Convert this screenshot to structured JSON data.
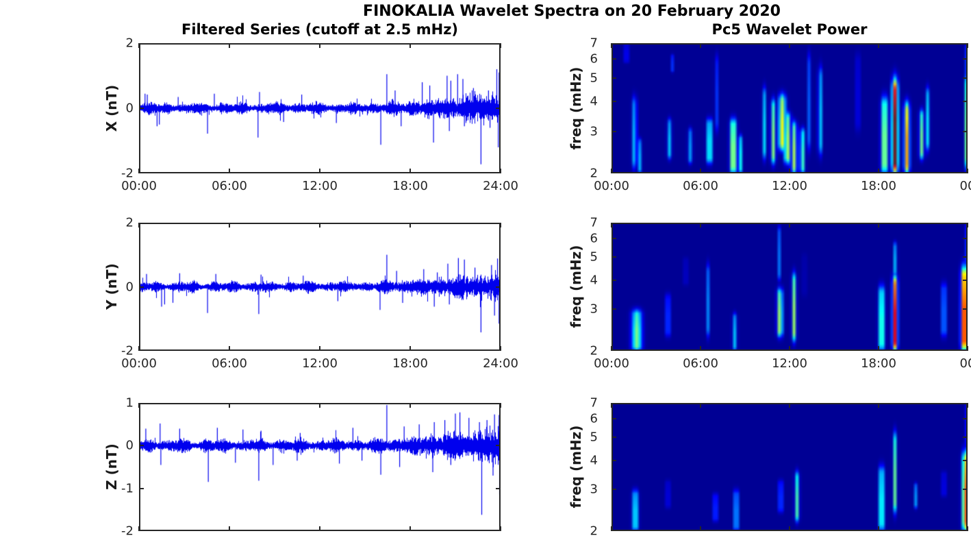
{
  "figure": {
    "title": "FINOKALIA Wavelet Spectra on 20 February 2020",
    "left_title": "Filtered Series (cutoff at 2.5 mHz)",
    "right_title": "Pc5 Wavelet Power"
  },
  "colors": {
    "series_line": "#0000ee",
    "axis": "#262626",
    "tick_text": "#262626",
    "title_text": "#000000",
    "spectrogram_background": "#00008f",
    "colormap": "jet"
  },
  "chart_data": [
    {
      "type": "line",
      "id": "x-filtered-series",
      "component": "X",
      "ylabel": "X (nT)",
      "ylim": [
        -2,
        2
      ],
      "yticks": [
        2,
        0,
        -2
      ],
      "x_range_hours": [
        0,
        24
      ],
      "xtick_labels": [
        "00:00",
        "06:00",
        "12:00",
        "18:00",
        "24:00"
      ],
      "line_color": "#0000ee",
      "noise": {
        "seed": 7,
        "base_amp": 0.1,
        "late_start": 14.5,
        "late_amp": 0.3
      },
      "spikes": [
        [
          0.4,
          0.45
        ],
        [
          0.55,
          0.42
        ],
        [
          1.2,
          -0.55
        ],
        [
          1.35,
          -0.5
        ],
        [
          2.6,
          0.35
        ],
        [
          4.55,
          -0.78
        ],
        [
          5.0,
          0.45
        ],
        [
          7.9,
          -0.9
        ],
        [
          8.0,
          0.5
        ],
        [
          9.6,
          -0.42
        ],
        [
          10.8,
          0.42
        ],
        [
          13.1,
          -0.45
        ],
        [
          16.05,
          -1.12
        ],
        [
          16.45,
          1.05
        ],
        [
          17.0,
          0.55
        ],
        [
          17.4,
          -0.55
        ],
        [
          18.8,
          0.8
        ],
        [
          19.3,
          0.7
        ],
        [
          19.55,
          -1.05
        ],
        [
          20.45,
          1.0
        ],
        [
          20.6,
          -0.7
        ],
        [
          20.7,
          0.85
        ],
        [
          21.15,
          1.05
        ],
        [
          21.5,
          0.9
        ],
        [
          21.6,
          -0.55
        ],
        [
          22.2,
          0.62
        ],
        [
          22.7,
          -1.72
        ],
        [
          23.2,
          0.55
        ],
        [
          23.3,
          -0.6
        ],
        [
          23.75,
          1.2
        ],
        [
          23.85,
          -1.2
        ],
        [
          23.9,
          1.1
        ]
      ]
    },
    {
      "type": "heatmap",
      "id": "x-pc5-wavelet-power",
      "component": "X",
      "ylabel": "freq (mHz)",
      "ylim_mhz": [
        2,
        7
      ],
      "yscale": "log",
      "yticks": [
        7,
        6,
        5,
        4,
        3,
        2
      ],
      "x_range_hours": [
        0,
        24
      ],
      "xtick_labels": [
        "00:00",
        "06:00",
        "12:00",
        "18:00",
        "00"
      ],
      "features_format": "[hour, freq_lo_mHz, freq_hi_mHz, sigma_hours, power_0_to_1]",
      "features": [
        [
          1.0,
          5.8,
          7.0,
          0.08,
          0.18
        ],
        [
          1.55,
          2.1,
          4.2,
          0.1,
          0.32
        ],
        [
          1.9,
          2.0,
          2.8,
          0.08,
          0.28
        ],
        [
          3.9,
          2.3,
          3.4,
          0.09,
          0.3
        ],
        [
          4.1,
          5.3,
          6.3,
          0.06,
          0.15
        ],
        [
          5.3,
          2.2,
          3.1,
          0.09,
          0.26
        ],
        [
          6.6,
          2.2,
          3.4,
          0.11,
          0.48
        ],
        [
          7.05,
          3.0,
          6.3,
          0.06,
          0.22
        ],
        [
          8.2,
          2.0,
          3.4,
          0.13,
          0.62
        ],
        [
          8.65,
          2.0,
          2.9,
          0.09,
          0.42
        ],
        [
          10.3,
          2.3,
          4.6,
          0.08,
          0.32
        ],
        [
          10.9,
          2.2,
          4.1,
          0.1,
          0.48
        ],
        [
          11.5,
          2.5,
          4.3,
          0.16,
          0.6
        ],
        [
          11.85,
          2.2,
          3.6,
          0.14,
          0.55
        ],
        [
          12.3,
          2.0,
          3.3,
          0.12,
          0.52
        ],
        [
          12.85,
          2.0,
          3.1,
          0.1,
          0.46
        ],
        [
          13.35,
          2.5,
          6.4,
          0.06,
          0.28
        ],
        [
          14.05,
          2.4,
          5.6,
          0.08,
          0.36
        ],
        [
          16.6,
          3.0,
          6.4,
          0.06,
          0.26
        ],
        [
          18.4,
          2.0,
          4.2,
          0.14,
          0.58
        ],
        [
          19.1,
          2.0,
          5.0,
          0.13,
          1.0
        ],
        [
          19.9,
          2.0,
          4.0,
          0.12,
          0.68
        ],
        [
          20.9,
          2.3,
          3.7,
          0.1,
          0.46
        ],
        [
          21.3,
          2.5,
          4.6,
          0.08,
          0.33
        ],
        [
          23.9,
          2.1,
          5.2,
          0.07,
          0.45
        ],
        [
          23.95,
          5.0,
          7.0,
          0.05,
          0.25
        ]
      ]
    },
    {
      "type": "line",
      "id": "y-filtered-series",
      "component": "Y",
      "ylabel": "Y (nT)",
      "ylim": [
        -2,
        2
      ],
      "yticks": [
        2,
        0,
        -2
      ],
      "x_range_hours": [
        0,
        24
      ],
      "xtick_labels": [
        "00:00",
        "06:00",
        "12:00",
        "18:00",
        "24:00"
      ],
      "line_color": "#0000ee",
      "noise": {
        "seed": 8,
        "base_amp": 0.095,
        "late_start": 14.5,
        "late_amp": 0.26
      },
      "spikes": [
        [
          0.5,
          0.4
        ],
        [
          1.5,
          -0.62
        ],
        [
          1.7,
          -0.55
        ],
        [
          2.25,
          -0.5
        ],
        [
          2.7,
          0.42
        ],
        [
          4.55,
          -0.82
        ],
        [
          5.1,
          0.4
        ],
        [
          7.95,
          -0.85
        ],
        [
          8.1,
          0.38
        ],
        [
          10.9,
          0.35
        ],
        [
          13.2,
          -0.45
        ],
        [
          16.0,
          -0.72
        ],
        [
          16.45,
          1.0
        ],
        [
          17.1,
          0.5
        ],
        [
          17.5,
          -0.5
        ],
        [
          18.9,
          0.55
        ],
        [
          19.6,
          -0.62
        ],
        [
          19.8,
          0.45
        ],
        [
          20.5,
          0.72
        ],
        [
          20.6,
          -0.55
        ],
        [
          21.2,
          0.9
        ],
        [
          21.6,
          0.85
        ],
        [
          22.3,
          0.6
        ],
        [
          22.7,
          -1.42
        ],
        [
          23.4,
          0.68
        ],
        [
          23.6,
          -0.9
        ],
        [
          23.8,
          0.88
        ],
        [
          23.9,
          -1.15
        ]
      ]
    },
    {
      "type": "heatmap",
      "id": "y-pc5-wavelet-power",
      "component": "Y",
      "ylabel": "freq (mHz)",
      "ylim_mhz": [
        2,
        7
      ],
      "yscale": "log",
      "yticks": [
        7,
        6,
        5,
        4,
        3,
        2
      ],
      "x_range_hours": [
        0,
        24
      ],
      "xtick_labels": [
        "00:00",
        "06:00",
        "12:00",
        "18:00",
        "00"
      ],
      "features_format": "[hour, freq_lo_mHz, freq_hi_mHz, sigma_hours, power_0_to_1]",
      "features": [
        [
          1.7,
          2.0,
          3.0,
          0.22,
          0.48
        ],
        [
          3.8,
          2.3,
          3.5,
          0.08,
          0.3
        ],
        [
          5.0,
          3.8,
          5.0,
          0.06,
          0.16
        ],
        [
          6.5,
          2.3,
          4.7,
          0.07,
          0.24
        ],
        [
          8.3,
          2.0,
          2.9,
          0.09,
          0.3
        ],
        [
          11.35,
          2.3,
          3.7,
          0.12,
          0.55
        ],
        [
          11.3,
          4.0,
          6.8,
          0.06,
          0.22
        ],
        [
          12.3,
          2.2,
          4.3,
          0.09,
          0.5
        ],
        [
          13.0,
          3.4,
          5.2,
          0.05,
          0.18
        ],
        [
          18.2,
          2.0,
          3.8,
          0.12,
          0.52
        ],
        [
          19.1,
          2.0,
          4.2,
          0.11,
          0.85
        ],
        [
          19.15,
          4.2,
          5.8,
          0.06,
          0.4
        ],
        [
          22.4,
          2.3,
          3.9,
          0.08,
          0.4
        ],
        [
          23.8,
          2.0,
          4.6,
          0.15,
          0.95
        ],
        [
          23.95,
          4.5,
          7.0,
          0.05,
          0.22
        ]
      ]
    },
    {
      "type": "line",
      "id": "z-filtered-series",
      "component": "Z",
      "ylabel": "Z (nT)",
      "ylim": [
        -2,
        1
      ],
      "yticks": [
        1,
        0,
        -1,
        -2
      ],
      "x_range_hours": [
        0,
        24
      ],
      "xtick_labels": [],
      "line_color": "#0000ee",
      "noise": {
        "seed": 9,
        "base_amp": 0.085,
        "late_start": 14.5,
        "late_amp": 0.24
      },
      "spikes": [
        [
          0.45,
          0.4
        ],
        [
          1.4,
          0.52
        ],
        [
          1.45,
          -0.45
        ],
        [
          2.7,
          0.4
        ],
        [
          4.6,
          -0.85
        ],
        [
          5.2,
          0.42
        ],
        [
          6.4,
          -0.4
        ],
        [
          6.9,
          0.38
        ],
        [
          7.95,
          -0.82
        ],
        [
          8.1,
          0.35
        ],
        [
          8.9,
          -0.45
        ],
        [
          10.5,
          -0.35
        ],
        [
          10.7,
          0.3
        ],
        [
          13.3,
          -0.42
        ],
        [
          14.2,
          0.42
        ],
        [
          14.8,
          -0.35
        ],
        [
          16.05,
          -0.68
        ],
        [
          16.45,
          0.95
        ],
        [
          17.3,
          -0.5
        ],
        [
          17.6,
          0.45
        ],
        [
          18.6,
          0.5
        ],
        [
          19.5,
          -0.62
        ],
        [
          19.6,
          0.55
        ],
        [
          20.3,
          0.6
        ],
        [
          20.7,
          -0.45
        ],
        [
          21.0,
          0.75
        ],
        [
          21.3,
          0.78
        ],
        [
          21.9,
          0.65
        ],
        [
          22.6,
          0.55
        ],
        [
          22.75,
          -1.62
        ],
        [
          23.1,
          0.6
        ],
        [
          23.5,
          -0.7
        ],
        [
          23.6,
          0.73
        ],
        [
          23.9,
          0.72
        ],
        [
          23.95,
          -1.15
        ]
      ]
    },
    {
      "type": "heatmap",
      "id": "z-pc5-wavelet-power",
      "component": "Z",
      "ylabel": "freq (mHz)",
      "ylim_mhz": [
        2,
        7
      ],
      "yscale": "log",
      "yticks": [
        7,
        6,
        5,
        4,
        3,
        2
      ],
      "x_range_hours": [
        0,
        24
      ],
      "xtick_labels": [],
      "features_format": "[hour, freq_lo_mHz, freq_hi_mHz, sigma_hours, power_0_to_1]",
      "features": [
        [
          1.6,
          2.0,
          3.0,
          0.12,
          0.42
        ],
        [
          3.8,
          2.5,
          3.3,
          0.06,
          0.25
        ],
        [
          7.0,
          2.2,
          2.9,
          0.08,
          0.28
        ],
        [
          8.4,
          2.0,
          3.0,
          0.09,
          0.4
        ],
        [
          11.4,
          2.4,
          3.3,
          0.08,
          0.3
        ],
        [
          12.5,
          2.2,
          3.6,
          0.09,
          0.42
        ],
        [
          18.2,
          2.0,
          3.8,
          0.11,
          0.5
        ],
        [
          19.1,
          2.4,
          5.3,
          0.08,
          0.45
        ],
        [
          20.5,
          2.5,
          3.2,
          0.06,
          0.25
        ],
        [
          22.4,
          2.8,
          3.6,
          0.06,
          0.28
        ],
        [
          23.85,
          2.0,
          4.4,
          0.13,
          0.85
        ],
        [
          23.95,
          4.5,
          7.0,
          0.05,
          0.18
        ]
      ]
    }
  ]
}
